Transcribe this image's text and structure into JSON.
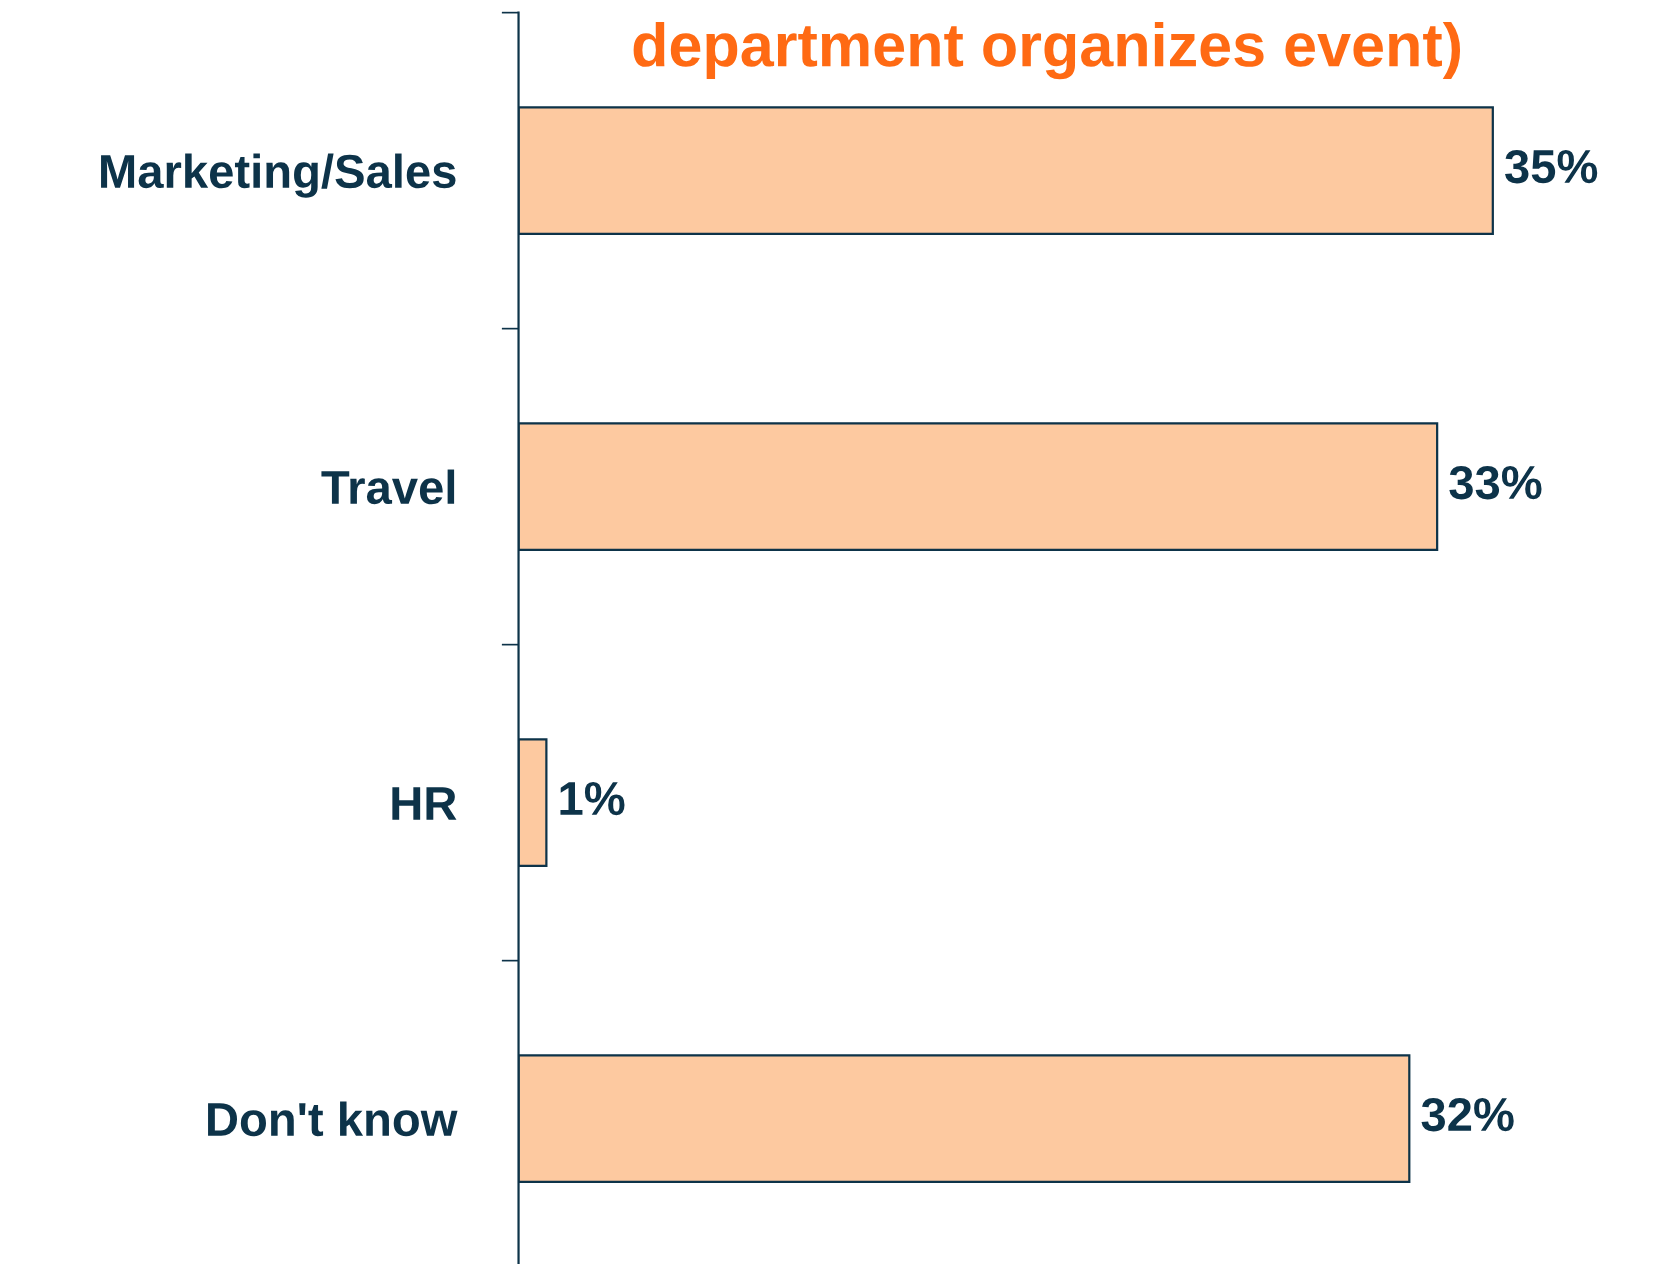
{
  "chart_data": {
    "type": "bar",
    "orientation": "horizontal",
    "title": "department organizes event)",
    "categories": [
      "Marketing/Sales",
      "Travel",
      "HR",
      "Don't know"
    ],
    "values": [
      35,
      33,
      1,
      32
    ],
    "color": "#fdc9a0",
    "data_labels": true,
    "value_labels": [
      "35%",
      "33%",
      "1%",
      "32%"
    ],
    "grid": false
  }
}
